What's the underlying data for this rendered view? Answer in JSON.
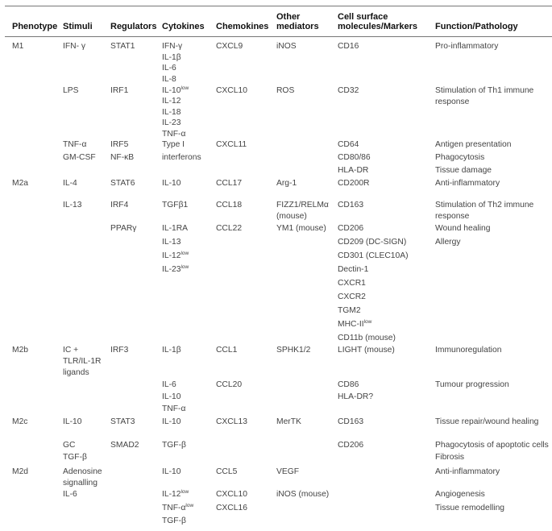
{
  "headers": [
    "Phenotype",
    "Stimuli",
    "Regulators",
    "Cytokines",
    "Chemokines",
    [
      "Other",
      "mediators"
    ],
    [
      "Cell surface",
      "molecules/Markers"
    ],
    "Function/Pathology"
  ],
  "rows": [
    {
      "cols": [
        [
          "M1"
        ],
        [
          "IFN- γ"
        ],
        [
          "STAT1"
        ],
        [
          "IFN-γ",
          "IL-1β",
          "IL-6",
          "IL-8"
        ],
        [
          "CXCL9"
        ],
        [
          "iNOS"
        ],
        [
          "CD16"
        ],
        [
          "Pro-inflammatory"
        ]
      ]
    },
    {
      "cols": [
        [],
        [
          "LPS"
        ],
        [
          "IRF1"
        ],
        [
          {
            "text": "IL-10",
            "sup": "low"
          },
          "IL-12",
          "IL-18",
          "IL-23",
          "TNF-α"
        ],
        [
          "CXCL10"
        ],
        [
          "ROS"
        ],
        [
          "CD32"
        ],
        [
          "Stimulation of Th1 immune",
          "response"
        ]
      ]
    },
    {
      "cols": [
        [],
        [
          "TNF-α",
          "GM-CSF"
        ],
        [
          "IRF5",
          "NF-κB"
        ],
        [
          "Type I",
          "interferons"
        ],
        [
          "CXCL11"
        ],
        [],
        [
          "CD64",
          "CD80/86",
          "HLA-DR"
        ],
        [
          "Antigen presentation",
          "Phagocytosis",
          "Tissue damage"
        ]
      ]
    },
    {
      "cols": [
        [
          "M2a"
        ],
        [
          "IL-4"
        ],
        [
          "STAT6"
        ],
        [
          "IL-10"
        ],
        [
          "CCL17"
        ],
        [
          "Arg-1"
        ],
        [
          "CD200R"
        ],
        [
          "Anti-inflammatory"
        ]
      ]
    },
    {
      "cols": [
        [],
        [
          "IL-13"
        ],
        [
          "IRF4"
        ],
        [
          "TGFβ1"
        ],
        [
          "CCL18"
        ],
        [
          "FIZZ1/RELMα",
          "(mouse)"
        ],
        [
          "CD163"
        ],
        [
          "Stimulation of Th2 immune",
          "response"
        ]
      ]
    },
    {
      "cols": [
        [],
        [],
        [
          "PPARγ"
        ],
        [
          "IL-1RA",
          "IL-13",
          {
            "text": "IL-12",
            "sup": "low"
          },
          {
            "text": "IL-23",
            "sup": "low"
          }
        ],
        [
          "CCL22"
        ],
        [
          "YM1 (mouse)"
        ],
        [
          "CD206",
          "CD209 (DC-SIGN)",
          "CD301 (CLEC10A)",
          "Dectin-1",
          "CXCR1",
          "CXCR2",
          "TGM2",
          {
            "text": "MHC-II",
            "sup": "low"
          },
          "CD11b (mouse)"
        ],
        [
          "Wound healing",
          "Allergy"
        ]
      ]
    },
    {
      "cols": [
        [
          "M2b"
        ],
        [
          "IC +",
          "TLR/IL-1R",
          "ligands"
        ],
        [
          "IRF3"
        ],
        [
          "IL-1β"
        ],
        [
          "CCL1"
        ],
        [
          "SPHK1/2"
        ],
        [
          "LIGHT (mouse)"
        ],
        [
          "Immunoregulation"
        ]
      ]
    },
    {
      "cols": [
        [],
        [],
        [],
        [
          "IL-6",
          "IL-10",
          "TNF-α"
        ],
        [
          "CCL20"
        ],
        [],
        [
          "CD86",
          "HLA-DR?"
        ],
        [
          "Tumour progression"
        ]
      ]
    },
    {
      "cols": [
        [
          "M2c"
        ],
        [
          "IL-10"
        ],
        [
          "STAT3"
        ],
        [
          "IL-10"
        ],
        [
          "CXCL13"
        ],
        [
          "MerTK"
        ],
        [
          "CD163"
        ],
        [
          "Tissue repair/wound healing"
        ]
      ]
    },
    {
      "cols": [
        [],
        [
          "GC",
          "TGF-β"
        ],
        [
          "SMAD2"
        ],
        [
          "TGF-β"
        ],
        [],
        [],
        [
          "CD206"
        ],
        [
          "Phagocytosis of apoptotic cells",
          "Fibrosis"
        ]
      ]
    },
    {
      "cols": [
        [
          "M2d"
        ],
        [
          "Adenosine",
          "signalling"
        ],
        [],
        [
          "IL-10"
        ],
        [
          "CCL5"
        ],
        [
          "VEGF"
        ],
        [],
        [
          "Anti-inflammatory"
        ]
      ]
    },
    {
      "cols": [
        [],
        [
          "IL-6"
        ],
        [],
        [
          {
            "text": "IL-12",
            "sup": "low"
          },
          {
            "text": "TNF-α",
            "sup": "low"
          },
          "TGF-β"
        ],
        [
          "CXCL10",
          "CXCL16"
        ],
        [
          "iNOS (mouse)"
        ],
        [],
        [
          "Angiogenesis",
          "Tissue remodelling"
        ]
      ]
    }
  ]
}
